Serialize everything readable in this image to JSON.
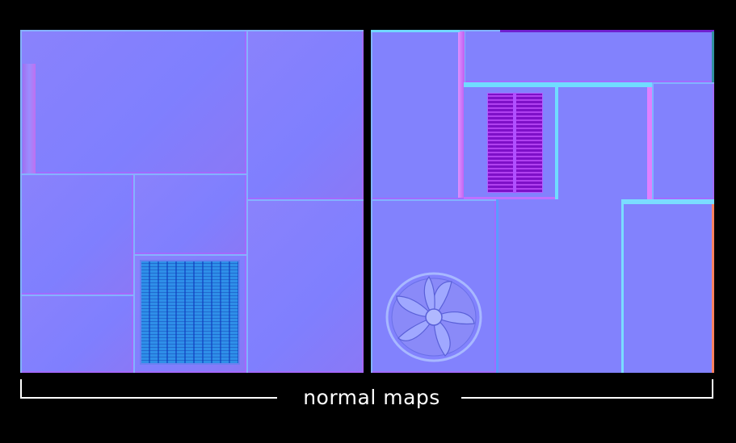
{
  "caption": "normal maps",
  "colors": {
    "background": "#000000",
    "normal_base": "#8080ff",
    "edge_highlight": "#82dcff",
    "edge_shadow": "#be5aff",
    "vent": "#2e8fe8",
    "louver": "#7e10c8"
  },
  "textures": [
    {
      "name": "left-normal-map",
      "elements": [
        "panels",
        "vent-grille"
      ]
    },
    {
      "name": "right-normal-map",
      "elements": [
        "panels",
        "louver-vent",
        "fan"
      ]
    }
  ]
}
